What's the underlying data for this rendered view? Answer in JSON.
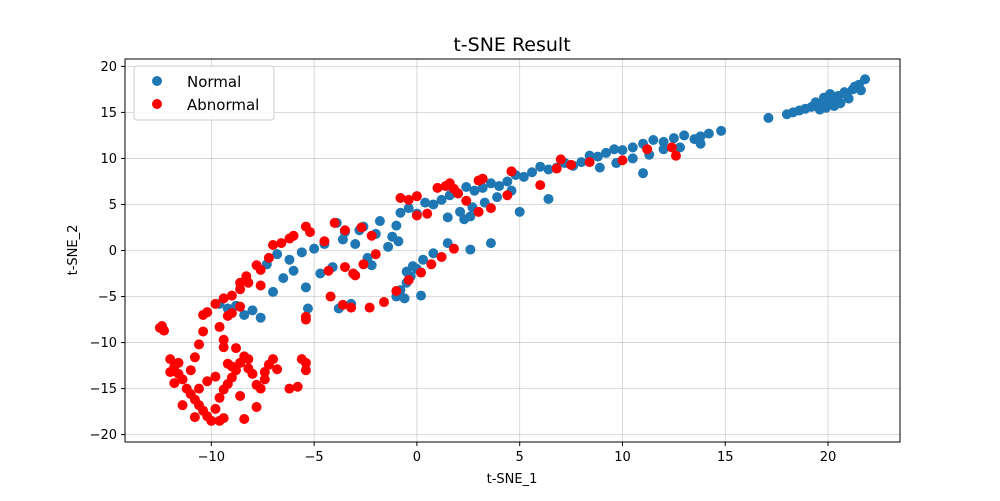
{
  "chart_data": {
    "type": "scatter",
    "title": "t-SNE Result",
    "xlabel": "t-SNE_1",
    "ylabel": "t-SNE_2",
    "xlim": [
      -14.2,
      23.5
    ],
    "ylim": [
      -20.8,
      20.8
    ],
    "xticks": [
      -10,
      -5,
      0,
      5,
      10,
      15,
      20
    ],
    "yticks": [
      -20,
      -15,
      -10,
      -5,
      0,
      5,
      10,
      15,
      20
    ],
    "xtick_labels": [
      "−10",
      "−5",
      "0",
      "5",
      "10",
      "15",
      "20"
    ],
    "ytick_labels": [
      "−20",
      "−15",
      "−10",
      "−5",
      "0",
      "5",
      "10",
      "15",
      "20"
    ],
    "grid": true,
    "legend_position": "upper-left",
    "series": [
      {
        "name": "Normal",
        "color": "#1f77b4",
        "points": [
          [
            21.8,
            18.6
          ],
          [
            21.5,
            18.0
          ],
          [
            21.2,
            17.5
          ],
          [
            20.8,
            17.2
          ],
          [
            20.5,
            16.8
          ],
          [
            20.2,
            16.5
          ],
          [
            20.0,
            16.2
          ],
          [
            19.7,
            16.0
          ],
          [
            19.5,
            15.8
          ],
          [
            19.2,
            15.6
          ],
          [
            18.9,
            15.4
          ],
          [
            18.6,
            15.2
          ],
          [
            18.3,
            15.0
          ],
          [
            18.0,
            14.8
          ],
          [
            21.0,
            16.5
          ],
          [
            20.6,
            16.0
          ],
          [
            20.3,
            15.7
          ],
          [
            19.9,
            15.5
          ],
          [
            19.6,
            15.3
          ],
          [
            20.1,
            17.0
          ],
          [
            19.8,
            16.6
          ],
          [
            21.3,
            17.8
          ],
          [
            20.9,
            16.9
          ],
          [
            19.4,
            16.1
          ],
          [
            21.6,
            17.4
          ],
          [
            17.1,
            14.4
          ],
          [
            14.8,
            13.0
          ],
          [
            14.2,
            12.7
          ],
          [
            13.8,
            12.4
          ],
          [
            13.5,
            12.1
          ],
          [
            13.0,
            12.5
          ],
          [
            12.5,
            12.2
          ],
          [
            12.0,
            11.8
          ],
          [
            11.5,
            12.0
          ],
          [
            11.0,
            11.6
          ],
          [
            10.5,
            11.2
          ],
          [
            10.0,
            10.9
          ],
          [
            9.6,
            11.0
          ],
          [
            9.2,
            10.6
          ],
          [
            8.8,
            10.2
          ],
          [
            8.4,
            10.3
          ],
          [
            8.0,
            9.6
          ],
          [
            7.6,
            9.2
          ],
          [
            7.2,
            9.5
          ],
          [
            6.8,
            9.0
          ],
          [
            6.4,
            8.8
          ],
          [
            6.0,
            9.1
          ],
          [
            5.6,
            8.5
          ],
          [
            5.2,
            8.0
          ],
          [
            4.8,
            8.2
          ],
          [
            4.4,
            7.5
          ],
          [
            4.0,
            7.0
          ],
          [
            3.6,
            7.3
          ],
          [
            3.2,
            6.8
          ],
          [
            2.8,
            6.5
          ],
          [
            2.4,
            6.9
          ],
          [
            2.0,
            6.2
          ],
          [
            1.6,
            6.0
          ],
          [
            1.2,
            5.5
          ],
          [
            0.8,
            5.0
          ],
          [
            0.4,
            5.2
          ],
          [
            0.0,
            4.0
          ],
          [
            -0.4,
            4.6
          ],
          [
            -0.8,
            4.1
          ],
          [
            4.6,
            6.5
          ],
          [
            3.9,
            5.8
          ],
          [
            3.3,
            5.2
          ],
          [
            2.7,
            4.7
          ],
          [
            2.1,
            4.2
          ],
          [
            1.5,
            3.6
          ],
          [
            5.0,
            4.2
          ],
          [
            6.4,
            5.6
          ],
          [
            11.0,
            8.4
          ],
          [
            13.8,
            11.6
          ],
          [
            12.8,
            11.2
          ],
          [
            12.0,
            11.0
          ],
          [
            11.3,
            10.4
          ],
          [
            10.5,
            10.0
          ],
          [
            9.7,
            9.5
          ],
          [
            8.9,
            9.0
          ],
          [
            2.3,
            3.4
          ],
          [
            2.6,
            3.7
          ],
          [
            3.6,
            0.8
          ],
          [
            2.6,
            0.1
          ],
          [
            1.5,
            0.8
          ],
          [
            0.8,
            -0.3
          ],
          [
            0.3,
            -1.0
          ],
          [
            0.0,
            -2.0
          ],
          [
            -0.3,
            -2.8
          ],
          [
            -0.5,
            -3.5
          ],
          [
            -0.8,
            -4.3
          ],
          [
            -1.0,
            -5.0
          ],
          [
            0.2,
            -4.9
          ],
          [
            -0.6,
            -5.2
          ],
          [
            -0.2,
            -1.7
          ],
          [
            -0.5,
            -2.3
          ],
          [
            -3.2,
            -5.8
          ],
          [
            -3.8,
            -6.3
          ],
          [
            -5.3,
            -6.3
          ],
          [
            -1.2,
            1.5
          ],
          [
            -2.0,
            1.8
          ],
          [
            -2.8,
            2.2
          ],
          [
            -3.5,
            2.0
          ],
          [
            -3.9,
            3.0
          ],
          [
            -4.5,
            0.7
          ],
          [
            -5.0,
            0.2
          ],
          [
            -5.6,
            -0.2
          ],
          [
            -6.2,
            -1.0
          ],
          [
            -6.8,
            -0.4
          ],
          [
            -7.3,
            -1.5
          ],
          [
            -6.5,
            -3.0
          ],
          [
            -7.0,
            -4.5
          ],
          [
            -7.6,
            -7.3
          ],
          [
            -8.0,
            -6.5
          ],
          [
            -8.4,
            -7.0
          ],
          [
            -8.8,
            -6.0
          ],
          [
            -9.2,
            -6.3
          ],
          [
            -9.6,
            -5.8
          ],
          [
            -3.0,
            0.7
          ],
          [
            -2.2,
            -1.6
          ],
          [
            -4.1,
            -1.8
          ],
          [
            -1.8,
            3.2
          ],
          [
            -5.4,
            -4.0
          ],
          [
            -6.0,
            -2.2
          ],
          [
            -4.7,
            -2.5
          ],
          [
            -2.4,
            -0.8
          ],
          [
            -1.4,
            0.4
          ],
          [
            -0.9,
            1.0
          ],
          [
            -3.6,
            1.2
          ],
          [
            -2.6,
            2.6
          ],
          [
            -1.0,
            2.7
          ]
        ]
      },
      {
        "name": "Abnormal",
        "color": "#ff0000",
        "points": [
          [
            12.6,
            10.3
          ],
          [
            12.4,
            11.2
          ],
          [
            11.2,
            11.0
          ],
          [
            10.0,
            9.8
          ],
          [
            8.4,
            9.6
          ],
          [
            7.5,
            9.3
          ],
          [
            7.0,
            9.9
          ],
          [
            6.8,
            8.9
          ],
          [
            6.0,
            7.1
          ],
          [
            4.6,
            8.6
          ],
          [
            3.2,
            7.8
          ],
          [
            3.0,
            7.6
          ],
          [
            2.4,
            5.4
          ],
          [
            1.6,
            7.3
          ],
          [
            1.8,
            6.7
          ],
          [
            2.0,
            6.2
          ],
          [
            1.4,
            7.0
          ],
          [
            4.4,
            6.0
          ],
          [
            3.6,
            4.6
          ],
          [
            1.0,
            6.8
          ],
          [
            0.0,
            5.9
          ],
          [
            -0.4,
            5.5
          ],
          [
            -0.8,
            5.7
          ],
          [
            0.0,
            3.8
          ],
          [
            0.5,
            4.0
          ],
          [
            3.0,
            4.2
          ],
          [
            1.8,
            0.2
          ],
          [
            1.2,
            -0.7
          ],
          [
            0.7,
            -1.5
          ],
          [
            0.2,
            -2.4
          ],
          [
            -0.4,
            -3.2
          ],
          [
            -1.0,
            -4.4
          ],
          [
            -1.6,
            -5.6
          ],
          [
            -2.3,
            -6.2
          ],
          [
            -3.2,
            -6.2
          ],
          [
            -3.6,
            -5.9
          ],
          [
            -4.2,
            -5.0
          ],
          [
            -5.4,
            -7.5
          ],
          [
            -5.4,
            -7.2
          ],
          [
            -2.0,
            -0.4
          ],
          [
            -2.6,
            -1.5
          ],
          [
            -3.1,
            -2.5
          ],
          [
            -3.0,
            -2.7
          ],
          [
            -3.5,
            -1.8
          ],
          [
            -4.3,
            -2.2
          ],
          [
            -2.2,
            1.6
          ],
          [
            -2.7,
            2.5
          ],
          [
            -3.5,
            2.2
          ],
          [
            -4.0,
            3.0
          ],
          [
            -4.5,
            1.0
          ],
          [
            -5.2,
            2.0
          ],
          [
            -5.4,
            2.6
          ],
          [
            -6.0,
            1.6
          ],
          [
            -6.2,
            1.3
          ],
          [
            -6.6,
            0.8
          ],
          [
            -7.0,
            0.6
          ],
          [
            -7.2,
            -0.8
          ],
          [
            -7.6,
            -2.1
          ],
          [
            -7.8,
            -1.6
          ],
          [
            -7.6,
            -3.8
          ],
          [
            -8.2,
            -3.5
          ],
          [
            -8.6,
            -4.2
          ],
          [
            -9.0,
            -4.9
          ],
          [
            -9.4,
            -5.2
          ],
          [
            -9.8,
            -5.8
          ],
          [
            -10.2,
            -6.7
          ],
          [
            -10.4,
            -7.0
          ],
          [
            -9.2,
            -7.1
          ],
          [
            -8.6,
            -6.1
          ],
          [
            -8.3,
            -2.8
          ],
          [
            -8.6,
            -3.5
          ],
          [
            -9.0,
            -6.8
          ],
          [
            -9.6,
            -8.3
          ],
          [
            -10.4,
            -8.8
          ],
          [
            -10.6,
            -10.2
          ],
          [
            -9.4,
            -9.7
          ],
          [
            -9.4,
            -10.5
          ],
          [
            -8.8,
            -10.6
          ],
          [
            -12.5,
            -8.4
          ],
          [
            -12.3,
            -8.7
          ],
          [
            -12.0,
            -11.8
          ],
          [
            -11.8,
            -12.6
          ],
          [
            -11.6,
            -13.4
          ],
          [
            -11.4,
            -14.0
          ],
          [
            -11.2,
            -15.0
          ],
          [
            -11.0,
            -15.6
          ],
          [
            -10.8,
            -16.2
          ],
          [
            -10.6,
            -16.8
          ],
          [
            -10.4,
            -17.4
          ],
          [
            -10.2,
            -18.0
          ],
          [
            -10.0,
            -18.5
          ],
          [
            -9.8,
            -17.2
          ],
          [
            -9.6,
            -16.0
          ],
          [
            -9.4,
            -15.1
          ],
          [
            -9.2,
            -14.5
          ],
          [
            -9.0,
            -13.8
          ],
          [
            -8.8,
            -13.0
          ],
          [
            -8.6,
            -12.2
          ],
          [
            -8.4,
            -11.5
          ],
          [
            -8.2,
            -12.8
          ],
          [
            -8.0,
            -13.4
          ],
          [
            -7.8,
            -14.6
          ],
          [
            -7.6,
            -15.0
          ],
          [
            -7.4,
            -13.2
          ],
          [
            -7.2,
            -12.4
          ],
          [
            -7.0,
            -11.8
          ],
          [
            -6.8,
            -12.9
          ],
          [
            -6.2,
            -15.0
          ],
          [
            -5.8,
            -14.8
          ],
          [
            -5.4,
            -13.0
          ],
          [
            -5.4,
            -12.2
          ],
          [
            -5.6,
            -11.8
          ],
          [
            -9.6,
            -18.5
          ],
          [
            -9.4,
            -18.2
          ],
          [
            -10.8,
            -18.1
          ],
          [
            -11.4,
            -16.8
          ],
          [
            -11.8,
            -14.4
          ],
          [
            -12.0,
            -13.2
          ],
          [
            -10.8,
            -11.6
          ],
          [
            -9.2,
            -12.3
          ],
          [
            -9.0,
            -12.6
          ],
          [
            -8.6,
            -15.8
          ],
          [
            -8.4,
            -18.3
          ],
          [
            -7.8,
            -17.0
          ],
          [
            -11.0,
            -13.0
          ],
          [
            -10.2,
            -14.2
          ],
          [
            -9.8,
            -13.7
          ],
          [
            -11.6,
            -12.2
          ],
          [
            -10.6,
            -15.0
          ],
          [
            -12.4,
            -8.2
          ],
          [
            -8.2,
            -11.8
          ],
          [
            -7.4,
            -14.0
          ]
        ]
      }
    ]
  }
}
